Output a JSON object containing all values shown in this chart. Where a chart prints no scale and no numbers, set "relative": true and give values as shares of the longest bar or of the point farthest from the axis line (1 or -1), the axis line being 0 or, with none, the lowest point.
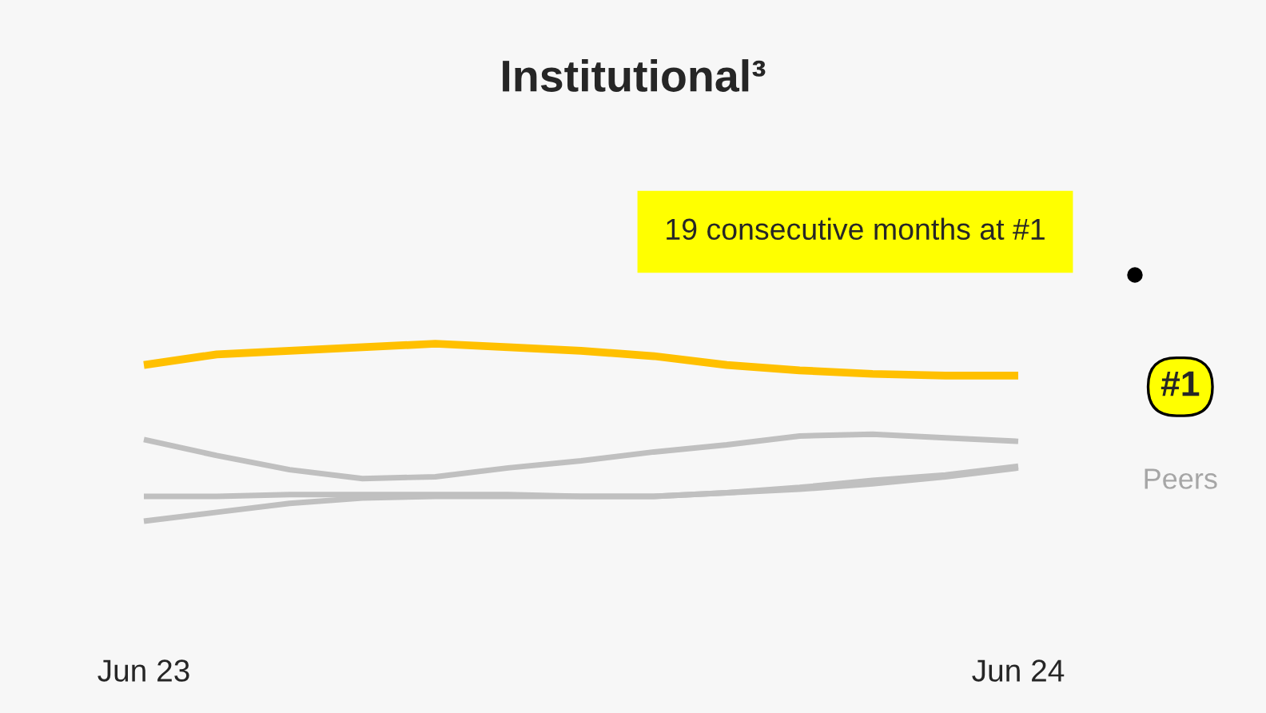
{
  "chart_data": {
    "type": "line",
    "title": "Institutional³",
    "relative": true,
    "legend": false,
    "grid": false,
    "marker": "none",
    "line_style": "solid",
    "categories": [
      "Jun 23",
      null,
      null,
      null,
      null,
      null,
      null,
      null,
      null,
      null,
      null,
      null,
      "Jun 24"
    ],
    "series": [
      {
        "name": "#1",
        "color": "#ffc000",
        "values": [
          0.88,
          0.94,
          0.96,
          0.98,
          1.0,
          0.98,
          0.96,
          0.93,
          0.88,
          0.85,
          0.83,
          0.82,
          0.82
        ]
      },
      {
        "name": "Peers",
        "color": "#c0c0c0",
        "values": [
          0.46,
          0.37,
          0.29,
          0.24,
          0.25,
          0.3,
          0.34,
          0.39,
          0.43,
          0.48,
          0.49,
          0.47,
          0.45
        ]
      },
      {
        "color": "#c0c0c0",
        "values": [
          0.14,
          0.14,
          0.15,
          0.15,
          0.15,
          0.15,
          0.14,
          0.14,
          0.16,
          0.18,
          0.21,
          0.25,
          0.3
        ]
      },
      {
        "color": "#c0c0c0",
        "values": [
          0.0,
          0.05,
          0.1,
          0.13,
          0.14,
          0.14,
          0.14,
          0.14,
          0.16,
          0.19,
          0.23,
          0.26,
          0.31
        ]
      }
    ],
    "annotations": [
      "19 consecutive months at #1"
    ]
  }
}
